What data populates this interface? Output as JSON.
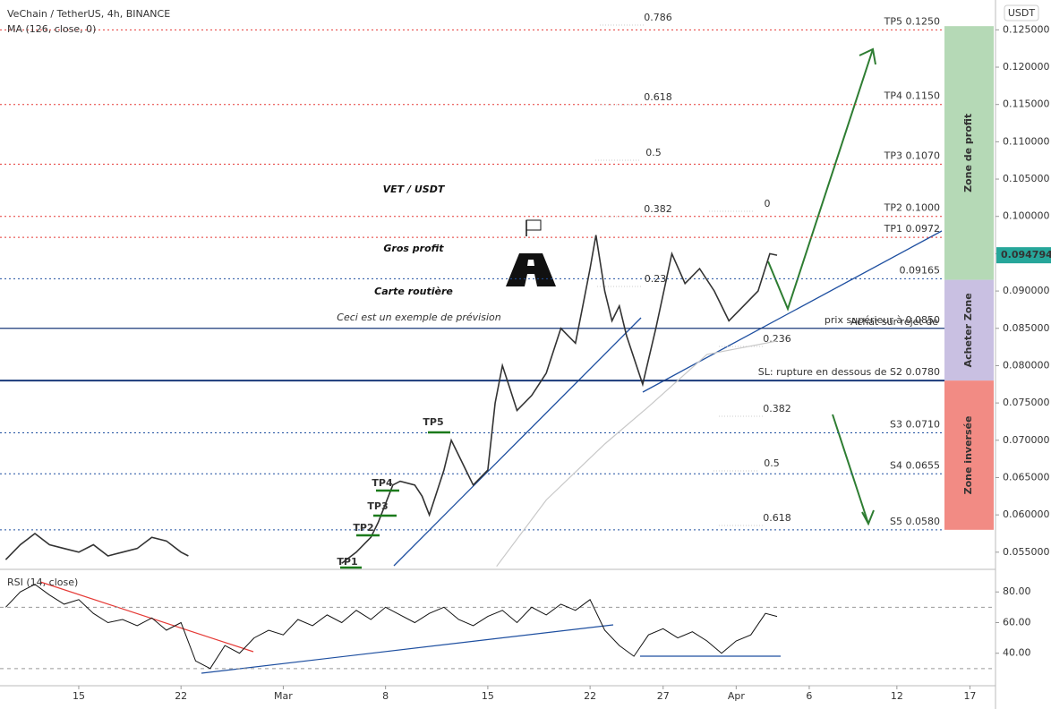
{
  "chart_data": [
    {
      "type": "line",
      "title": "VeChain / TetherUS, 4h, BINANCE",
      "unit": "USDT",
      "xlim": [
        -5.39,
        62.75
      ],
      "ylim": [
        0.0527,
        0.129
      ],
      "yticks": [
        {
          "value": 0.055,
          "label": "0.055000"
        },
        {
          "value": 0.06,
          "label": "0.060000"
        },
        {
          "value": 0.065,
          "label": "0.065000"
        },
        {
          "value": 0.07,
          "label": "0.070000"
        },
        {
          "value": 0.075,
          "label": "0.075000"
        },
        {
          "value": 0.08,
          "label": "0.080000"
        },
        {
          "value": 0.085,
          "label": "0.085000"
        },
        {
          "value": 0.09,
          "label": "0.090000"
        },
        {
          "value": 0.095,
          "label": "0.095000"
        },
        {
          "value": 0.1,
          "label": "0.100000"
        },
        {
          "value": 0.105,
          "label": "0.105000"
        },
        {
          "value": 0.11,
          "label": "0.110000"
        },
        {
          "value": 0.115,
          "label": "0.115000"
        },
        {
          "value": 0.12,
          "label": "0.120000"
        },
        {
          "value": 0.125,
          "label": "0.125000"
        }
      ],
      "series": [
        {
          "color": "#333333",
          "x": [
            -5,
            -4,
            -3,
            -2,
            -1,
            0,
            1,
            2,
            3,
            4,
            5,
            6,
            7,
            7.5,
            12,
            18,
            19,
            20,
            20.5,
            21,
            21.5,
            22,
            23,
            23.5,
            24,
            25,
            25.5,
            26,
            26.5,
            27,
            28,
            28.5,
            29,
            29.5,
            30,
            31,
            32,
            33,
            34,
            34.5,
            35,
            35.4,
            36,
            36.5,
            37,
            37.5,
            38.6,
            39.5,
            40.6,
            41.5,
            42.5,
            43.5,
            44.5,
            45.5,
            46.5,
            47.3,
            47.8
          ],
          "values": [
            0.054,
            0.056,
            0.0575,
            0.056,
            0.0555,
            0.055,
            0.056,
            0.0545,
            0.055,
            0.0555,
            0.057,
            0.0565,
            0.055,
            0.0545,
            null,
            0.0535,
            0.055,
            0.057,
            0.059,
            0.0615,
            0.064,
            0.0645,
            0.064,
            0.0625,
            0.06,
            0.066,
            0.07,
            0.068,
            0.066,
            0.064,
            0.066,
            0.075,
            0.08,
            0.077,
            0.074,
            0.076,
            0.079,
            0.085,
            0.083,
            0.088,
            0.093,
            0.0975,
            0.09,
            0.086,
            0.088,
            0.084,
            0.0775,
            0.085,
            0.095,
            0.091,
            0.093,
            0.09,
            0.086,
            0.088,
            0.09,
            0.095,
            0.0948
          ]
        },
        {
          "name": "MA (126, close, 0)",
          "color": "#c8c8c8",
          "x": [
            28.6,
            32,
            36,
            39,
            43,
            47.8
          ],
          "values": [
            0.0531,
            0.062,
            0.0695,
            0.0745,
            0.0815,
            0.0833
          ]
        }
      ],
      "last_price": 0.094794,
      "levels": [
        {
          "value": 0.125,
          "label": "TP5 0.1250",
          "color": "#e53935",
          "style": "dotted"
        },
        {
          "value": 0.115,
          "label": "TP4 0.1150",
          "color": "#e53935",
          "style": "dotted"
        },
        {
          "value": 0.107,
          "label": "TP3 0.1070",
          "color": "#e53935",
          "style": "dotted"
        },
        {
          "value": 0.1,
          "label": "TP2 0.1000",
          "color": "#e53935",
          "style": "dotted"
        },
        {
          "value": 0.0972,
          "label": "TP1 0.0972",
          "color": "#e53935",
          "style": "dotted"
        },
        {
          "value": 0.09165,
          "label": "0.09165",
          "color": "#1e4fa0",
          "style": "dotted"
        },
        {
          "value": 0.085,
          "label": "prix supérieur à  0.0850",
          "color": "#1a3a7a",
          "style": "solid"
        },
        {
          "value": 0.078,
          "label": "SL: rupture en dessous de S2 0.0780",
          "color": "#1a3a7a",
          "style": "thick"
        },
        {
          "value": 0.071,
          "label": "S3 0.0710",
          "color": "#1e4fa0",
          "style": "dotted"
        },
        {
          "value": 0.0655,
          "label": "S4 0.0655",
          "color": "#1e4fa0",
          "style": "dotted"
        },
        {
          "value": 0.058,
          "label": "S5 0.0580",
          "color": "#1e4fa0",
          "style": "dotted"
        }
      ],
      "zones": [
        {
          "label": "Zone de profit",
          "from": 0.1255,
          "to": 0.0915,
          "color": "#b5d9b6",
          "text_color": "#2e7d32"
        },
        {
          "label": "Acheter Zone",
          "from": 0.0915,
          "to": 0.078,
          "color": "#c9c0e2",
          "text_color": "#4a2c8f"
        },
        {
          "label": "Zone inversée",
          "from": 0.078,
          "to": 0.058,
          "color": "#f28b84",
          "text_color": "#b71c1c"
        }
      ],
      "annotations": [
        "VET / USDT",
        "Gros profit",
        "Carte routière",
        "Ceci est un exemple de prévision",
        "Achat sur rejet de"
      ],
      "fib_labels": [
        "0.786",
        "0.618",
        "0.5",
        "0.382",
        "0",
        "0.23",
        "0.236",
        "0.382",
        "0.5",
        "0.618"
      ],
      "tp_markers": [
        "TP5",
        "TP4",
        "TP3",
        "TP2",
        "TP1"
      ]
    },
    {
      "type": "line",
      "title": "RSI (14, close)",
      "color": "#111111",
      "xlim": [
        -5.39,
        62.75
      ],
      "ylim": [
        18.8,
        92.4
      ],
      "yticks": [
        {
          "value": 40,
          "label": "40.00"
        },
        {
          "value": 60,
          "label": "60.00"
        },
        {
          "value": 80,
          "label": "80.00"
        }
      ],
      "hlines": [
        30,
        70
      ],
      "xticks": [
        {
          "value": 0,
          "label": "15"
        },
        {
          "value": 7,
          "label": "22"
        },
        {
          "value": 14,
          "label": "Mar"
        },
        {
          "value": 21,
          "label": "8"
        },
        {
          "value": 28,
          "label": "15"
        },
        {
          "value": 35,
          "label": "22"
        },
        {
          "value": 40,
          "label": "27"
        },
        {
          "value": 45,
          "label": "Apr"
        },
        {
          "value": 50,
          "label": "6"
        },
        {
          "value": 56,
          "label": "12"
        },
        {
          "value": 61,
          "label": "17"
        }
      ],
      "x": [
        -5,
        -4,
        -3,
        -2,
        -1,
        0,
        1,
        2,
        3,
        4,
        5,
        6,
        7,
        8,
        9,
        10,
        11,
        12,
        13,
        14,
        15,
        16,
        17,
        18,
        19,
        20,
        21,
        22,
        23,
        24,
        25,
        26,
        27,
        28,
        29,
        30,
        31,
        32,
        33,
        34,
        35,
        36,
        37,
        38,
        39,
        40,
        41,
        42,
        43,
        44,
        45,
        46,
        47,
        47.8
      ],
      "values": [
        70,
        80,
        85,
        78,
        72,
        75,
        66,
        60,
        62,
        58,
        63,
        55,
        60,
        35,
        30,
        45,
        40,
        50,
        55,
        52,
        62,
        58,
        65,
        60,
        68,
        62,
        70,
        65,
        60,
        66,
        70,
        62,
        58,
        64,
        68,
        60,
        70,
        65,
        72,
        68,
        75,
        55,
        45,
        38,
        52,
        56,
        50,
        54,
        48,
        40,
        48,
        52,
        66,
        64
      ]
    }
  ]
}
